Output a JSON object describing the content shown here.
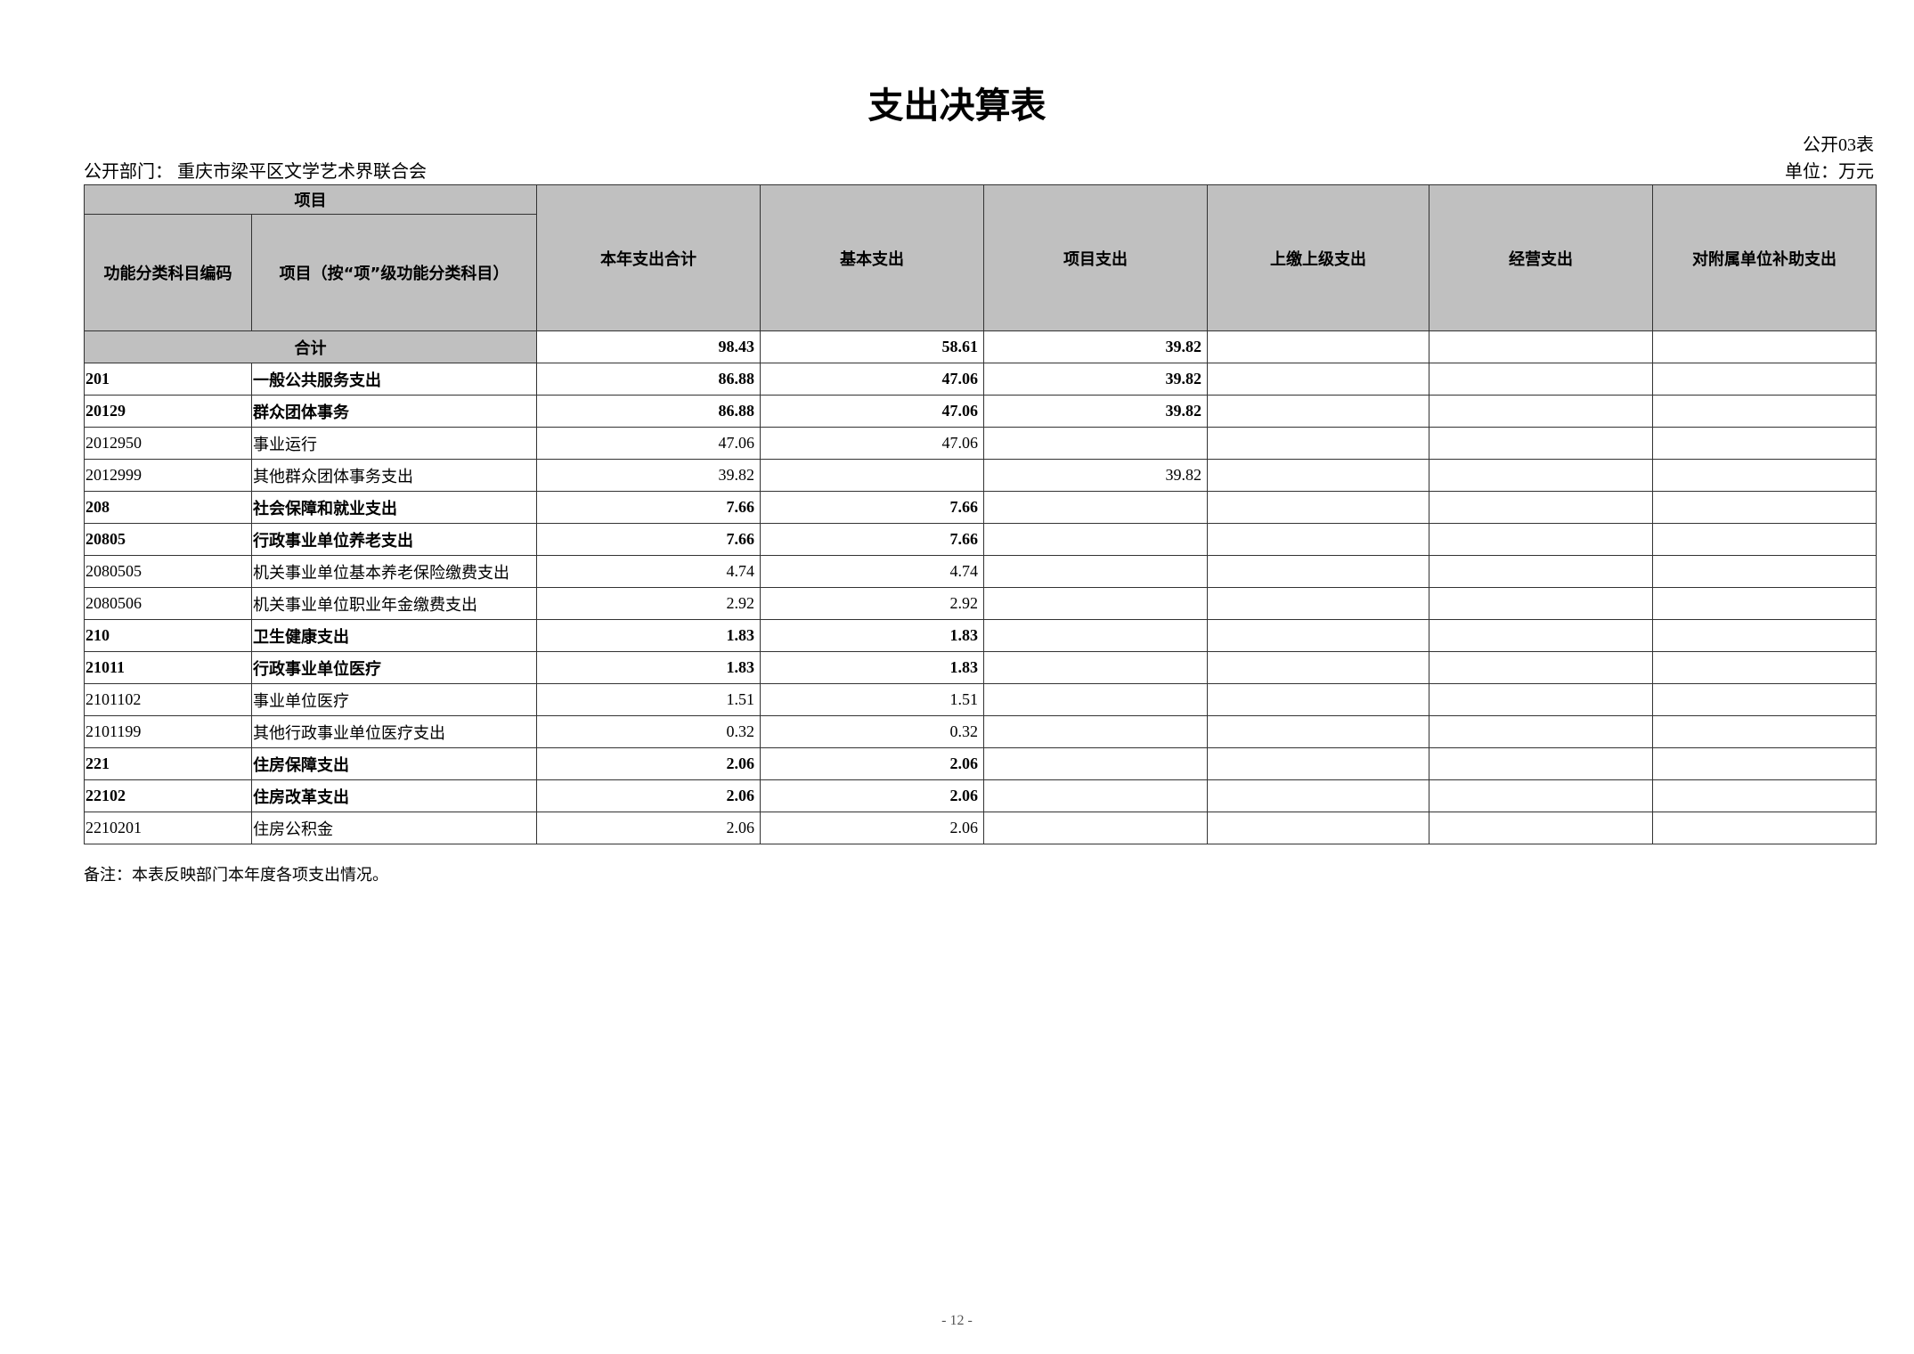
{
  "title": "支出决算表",
  "form_no": "公开03表",
  "department": "公开部门：  重庆市梁平区文学艺术界联合会",
  "unit": "单位：万元",
  "headers": {
    "item_group": "项目",
    "code": "功能分类科目编码",
    "name": "项目（按“项”级功能分类科目）",
    "total": "本年支出合计",
    "basic": "基本支出",
    "project": "项目支出",
    "upper": "上缴上级支出",
    "business": "经营支出",
    "subsidy": "对附属单位补助支出"
  },
  "total_row": {
    "label": "合计",
    "total": "98.43",
    "basic": "58.61",
    "project": "39.82",
    "upper": "",
    "business": "",
    "subsidy": ""
  },
  "rows": [
    {
      "code": "201",
      "name": "一般公共服务支出",
      "total": "86.88",
      "basic": "47.06",
      "project": "39.82",
      "bold": true
    },
    {
      "code": "20129",
      "name": "群众团体事务",
      "total": "86.88",
      "basic": "47.06",
      "project": "39.82",
      "bold": true
    },
    {
      "code": "2012950",
      "name": "事业运行",
      "total": "47.06",
      "basic": "47.06",
      "project": "",
      "bold": false
    },
    {
      "code": "2012999",
      "name": "其他群众团体事务支出",
      "total": "39.82",
      "basic": "",
      "project": "39.82",
      "bold": false
    },
    {
      "code": "208",
      "name": "社会保障和就业支出",
      "total": "7.66",
      "basic": "7.66",
      "project": "",
      "bold": true
    },
    {
      "code": "20805",
      "name": "行政事业单位养老支出",
      "total": "7.66",
      "basic": "7.66",
      "project": "",
      "bold": true
    },
    {
      "code": "2080505",
      "name": "机关事业单位基本养老保险缴费支出",
      "total": "4.74",
      "basic": "4.74",
      "project": "",
      "bold": false
    },
    {
      "code": "2080506",
      "name": "机关事业单位职业年金缴费支出",
      "total": "2.92",
      "basic": "2.92",
      "project": "",
      "bold": false
    },
    {
      "code": "210",
      "name": "卫生健康支出",
      "total": "1.83",
      "basic": "1.83",
      "project": "",
      "bold": true
    },
    {
      "code": "21011",
      "name": "行政事业单位医疗",
      "total": "1.83",
      "basic": "1.83",
      "project": "",
      "bold": true
    },
    {
      "code": "2101102",
      "name": "事业单位医疗",
      "total": "1.51",
      "basic": "1.51",
      "project": "",
      "bold": false
    },
    {
      "code": "2101199",
      "name": "其他行政事业单位医疗支出",
      "total": "0.32",
      "basic": "0.32",
      "project": "",
      "bold": false
    },
    {
      "code": "221",
      "name": "住房保障支出",
      "total": "2.06",
      "basic": "2.06",
      "project": "",
      "bold": true
    },
    {
      "code": "22102",
      "name": "住房改革支出",
      "total": "2.06",
      "basic": "2.06",
      "project": "",
      "bold": true
    },
    {
      "code": "2210201",
      "name": "住房公积金",
      "total": "2.06",
      "basic": "2.06",
      "project": "",
      "bold": false
    }
  ],
  "note": "备注：本表反映部门本年度各项支出情况。",
  "page_number": "- 12 -"
}
